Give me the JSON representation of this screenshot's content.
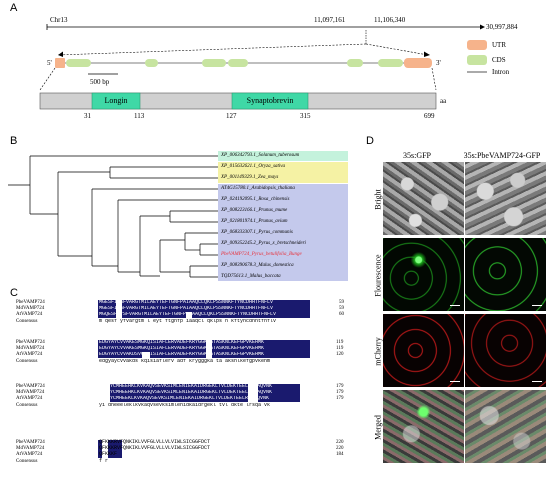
{
  "panels": {
    "A": "A",
    "B": "B",
    "C": "C",
    "D": "D"
  },
  "panel_a": {
    "chr": "Chr13",
    "pos_start": "11,097,161",
    "pos_end": "11,106,340",
    "chr_length": "30,997,884",
    "five_prime": "5'",
    "three_prime": "3'",
    "scale": "500 bp",
    "legend": {
      "utr": "UTR",
      "cds": "CDS",
      "intron": "Intron"
    },
    "domains": {
      "longin": "Longin",
      "synaptobrevin": "Synaptobrevin"
    },
    "positions": [
      "31",
      "113",
      "127",
      "315",
      "699"
    ],
    "aa": "aa",
    "colors": {
      "utr": "#f6b38b",
      "cds": "#c7e4a0",
      "domain": "#3fd8a6",
      "protein_bar": "#d0d0d0"
    }
  },
  "panel_b": {
    "leaves": [
      "XP_006342793.1_Solanum_tuberosum",
      "XP_015632621.1_Oryza_sativa",
      "XP_001149329.1_Zea_mays",
      "AT4G15780.1_Arabidopsis_thaliana",
      "XP_024192095.1_Rosa_chinensis",
      "XP_008223166.1_Prunus_mume",
      "XP_021801974.1_Prunus_avium",
      "XP_068333307.1_Pyrus_communis",
      "XP_009352245.2_Pyrus_x_bretschneideri",
      "PbeVAMP724_Pyrus_betulifolia_Bunge",
      "XP_008390678.3_Malus_domestica",
      "TQD75613.1_Malus_baccata"
    ],
    "colors": {
      "green": "#c4f2dc",
      "yellow": "#f5f2a4",
      "blue": "#c4c9ec",
      "highlight_text": "#e8323c"
    }
  },
  "panel_c": {
    "blocks": [
      {
        "rows": [
          {
            "name": "PbeVAMP724",
            "seq": "MGESFIYSFVARGTMILAEYTEFTGNFPAIAAQCLQKLPSSNNKFTYNCDHHTFNFLV",
            "end": "59"
          },
          {
            "name": "MdVAMP724",
            "seq": "MGESFIYSFVARGTMILAEYTEFTGNFPAIAAQCLQKLPSSNNKFTYNCDHHTFNFLV",
            "end": "59"
          },
          {
            "name": "AtVAMP724",
            "seq": "MGQESFIYSFVARGTMILAEYTEFTGNFPSIAAQCLQKLPSSNNKFTYNCDHHTFNFLV",
            "end": "60"
          }
        ],
        "consensus": "m qesf yfvargtm l eyt ftgnfp  iaaqcl qklps  n kftyncdhhtfnflv"
      },
      {
        "rows": [
          {
            "name": "PbeVAMP724",
            "seq": "EDGYAYCVVAKESMGKQISIAFLERVADEFKRYGGKAATASKNLKEFGPVKEHMK",
            "end": "119"
          },
          {
            "name": "MdVAMP724",
            "seq": "EDGYAYCVVAKESMGKQISIAFLERVADEFKRYGGKAATASKNLKEFGPVKEHMK",
            "end": "119"
          },
          {
            "name": "AtVAMP724",
            "seq": "EDGYAYCVVAKDSVGKQISIAFLERVADEFKRYGGKAATASKNLKEFGPVKEHMK",
            "end": "120"
          }
        ],
        "consensus": "edgyaycvvakds  kqisiaflerv adf  krygggka ta aksnlkefgpvkehm"
      },
      {
        "rows": [
          {
            "name": "PbeVAMP724",
            "seq": "YCMHEEHKLKVKAQVSEVKSIMLENIEKAIDRGEKLTVLDEKTEELRSQAQVNK",
            "end": "179"
          },
          {
            "name": "MdVAMP724",
            "seq": "YCMHEEHKLKVKAQVSEVKSIMLENIEKAIDRGEKLTVLDEKTEELRSQAQVNK",
            "end": "179"
          },
          {
            "name": "AtVAMP724",
            "seq": "YCMHEEKLKVKAQVSEVKSIMLENIEKAIDRGEKLTVLDEKTEELRSQAQVNK",
            "end": "179"
          }
        ],
        "consensus": "yi  dheeeleklkvkaqvsevksimlenidkaidrgekl tvl  dkte lrsqa  vk"
      },
      {
        "rows": [
          {
            "name": "PbeVAMP724",
            "seq": "QFKKKRVFQNKIKLVVFGLVLLVLVIWLSICGGFDCT",
            "end": "220"
          },
          {
            "name": "MdVAMP724",
            "seq": "QFKKKRVFQNKIKLVVFGLVLLVLVIWLSICGGFDCT",
            "end": "220"
          },
          {
            "name": "AtVAMP724",
            "seq": "QFKKKF",
            "end": "184"
          }
        ],
        "consensus": "    f  r"
      }
    ],
    "consensus_label": "Consensus",
    "colors": {
      "identical": "#1a1a6e",
      "identical_text": "#ffffff"
    }
  },
  "panel_d": {
    "columns": [
      "35s:GFP",
      "35s:PbeVAMP724-GFP"
    ],
    "rows": [
      "Bright",
      "Flourescence",
      "mCherry",
      "Merged"
    ]
  }
}
